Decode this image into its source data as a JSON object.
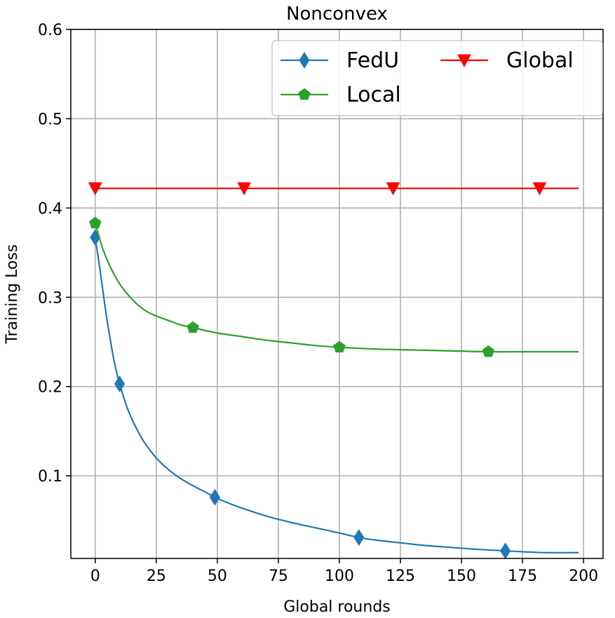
{
  "chart_data": {
    "type": "line",
    "title": "Nonconvex",
    "xlabel": "Global rounds",
    "ylabel": "Training Loss",
    "xlim": [
      -10,
      208
    ],
    "ylim": [
      0.0075,
      0.6
    ],
    "xticks": [
      0,
      25,
      50,
      75,
      100,
      125,
      150,
      175,
      200
    ],
    "yticks": [
      0.1,
      0.2,
      0.3,
      0.4,
      0.5,
      0.6
    ],
    "xtick_labels": [
      "0",
      "25",
      "50",
      "75",
      "100",
      "125",
      "150",
      "175",
      "200"
    ],
    "ytick_labels": [
      "0.1",
      "0.2",
      "0.3",
      "0.4",
      "0.5",
      "0.6"
    ],
    "grid": true,
    "legend_position": "upper right",
    "legend_columns": 2,
    "series": [
      {
        "name": "FedU",
        "color": "#1f77b4",
        "marker": "diamond",
        "x": [
          0,
          2,
          4,
          6,
          8,
          10,
          13,
          16,
          20,
          25,
          30,
          35,
          40,
          45,
          49,
          55,
          60,
          70,
          80,
          90,
          100,
          108,
          115,
          125,
          135,
          145,
          155,
          168,
          175,
          185,
          198
        ],
        "y": [
          0.367,
          0.33,
          0.29,
          0.255,
          0.225,
          0.203,
          0.177,
          0.158,
          0.138,
          0.12,
          0.107,
          0.097,
          0.089,
          0.082,
          0.076,
          0.069,
          0.064,
          0.055,
          0.048,
          0.042,
          0.036,
          0.031,
          0.028,
          0.025,
          0.022,
          0.02,
          0.018,
          0.016,
          0.015,
          0.014,
          0.014
        ],
        "marker_x": [
          0,
          10,
          49,
          108,
          168
        ],
        "marker_y": [
          0.367,
          0.203,
          0.076,
          0.031,
          0.016
        ]
      },
      {
        "name": "Local",
        "color": "#2ca02c",
        "marker": "pentagon",
        "x": [
          0,
          3,
          6,
          10,
          15,
          20,
          25,
          30,
          35,
          40,
          50,
          60,
          70,
          80,
          90,
          100,
          115,
          130,
          145,
          161,
          175,
          198
        ],
        "y": [
          0.383,
          0.355,
          0.335,
          0.315,
          0.298,
          0.286,
          0.279,
          0.274,
          0.269,
          0.266,
          0.26,
          0.256,
          0.252,
          0.249,
          0.246,
          0.244,
          0.242,
          0.241,
          0.24,
          0.239,
          0.239,
          0.239
        ],
        "marker_x": [
          0,
          40,
          100,
          161
        ],
        "marker_y": [
          0.383,
          0.266,
          0.244,
          0.239
        ]
      },
      {
        "name": "Global",
        "color": "#ff0000",
        "marker": "triangle-down",
        "x": [
          0,
          198
        ],
        "y": [
          0.422,
          0.422
        ],
        "marker_x": [
          0,
          61,
          122,
          182
        ],
        "marker_y": [
          0.422,
          0.422,
          0.422,
          0.422
        ]
      }
    ]
  }
}
